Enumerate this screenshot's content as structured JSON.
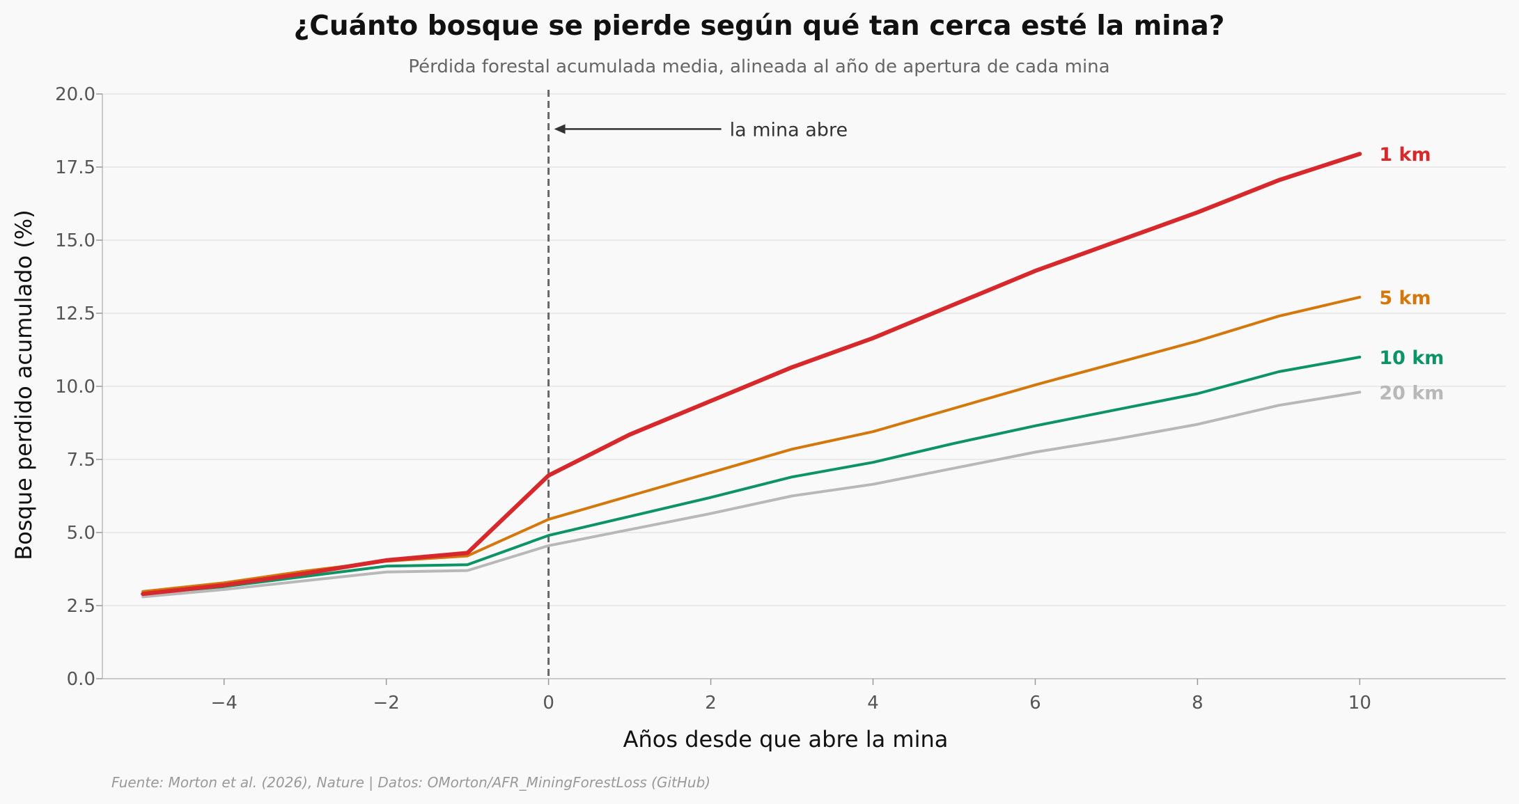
{
  "chart_data": {
    "type": "line",
    "title": "¿Cuánto bosque se pierde según qué tan cerca esté la mina?",
    "subtitle": "Pérdida forestal acumulada media, alineada al año de apertura de cada mina",
    "xlabel": "Años desde que abre la mina",
    "ylabel": "Bosque perdido acumulado (%)",
    "xlim": [
      -5.5,
      11.8
    ],
    "ylim": [
      0,
      20
    ],
    "xticks": [
      -4,
      -2,
      0,
      2,
      4,
      6,
      8,
      10
    ],
    "xtick_labels": [
      "−4",
      "−2",
      "0",
      "2",
      "4",
      "6",
      "8",
      "10"
    ],
    "yticks": [
      0,
      2.5,
      5,
      7.5,
      10,
      12.5,
      15,
      17.5,
      20
    ],
    "ytick_labels": [
      "0.0",
      "2.5",
      "5.0",
      "7.5",
      "10.0",
      "12.5",
      "15.0",
      "17.5",
      "20.0"
    ],
    "grid": "horizontal",
    "legend": "direct labels at line ends",
    "x": [
      -5,
      -4,
      -3,
      -2,
      -1,
      0,
      1,
      2,
      3,
      4,
      5,
      6,
      7,
      8,
      9,
      10
    ],
    "series": [
      {
        "name": "20 km",
        "color": "#b8b8b8",
        "width": 4,
        "values": [
          2.8,
          3.05,
          3.35,
          3.65,
          3.7,
          4.55,
          5.1,
          5.65,
          6.25,
          6.65,
          7.2,
          7.75,
          8.2,
          8.7,
          9.35,
          9.8
        ]
      },
      {
        "name": "10 km",
        "color": "#0d9466",
        "width": 4,
        "values": [
          2.9,
          3.15,
          3.5,
          3.85,
          3.9,
          4.9,
          5.55,
          6.2,
          6.9,
          7.4,
          8.05,
          8.65,
          9.2,
          9.75,
          10.5,
          11.0
        ]
      },
      {
        "name": "5 km",
        "color": "#d4780c",
        "width": 4,
        "values": [
          2.98,
          3.28,
          3.68,
          4.02,
          4.2,
          5.45,
          6.25,
          7.05,
          7.85,
          8.45,
          9.25,
          10.05,
          10.8,
          11.55,
          12.4,
          13.05
        ]
      },
      {
        "name": "1 km",
        "color": "#d7282b",
        "width": 6,
        "values": [
          2.9,
          3.2,
          3.6,
          4.05,
          4.3,
          6.95,
          8.35,
          9.5,
          10.65,
          11.65,
          12.8,
          13.95,
          14.95,
          15.95,
          17.05,
          17.95
        ]
      }
    ],
    "vline": {
      "x": 0
    },
    "annotation": {
      "text": "la mina abre",
      "arrow_to_x": 0,
      "y": 18.8
    },
    "source": "Fuente: Morton et al. (2026), Nature | Datos: OMorton/AFR_MiningForestLoss (GitHub)"
  }
}
